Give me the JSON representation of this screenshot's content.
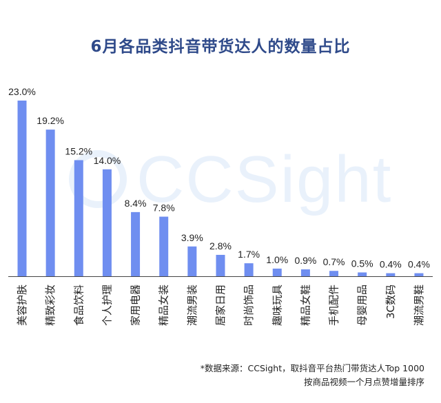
{
  "title": "6月各品类抖音带货达人的数量占比",
  "watermark": {
    "text": "CCSight",
    "icon": "ccsight-logo-icon"
  },
  "colors": {
    "bar": "#6f8ef0",
    "title": "#2f4a8a",
    "axis": "#444444"
  },
  "source": {
    "line1": "*数据来源：CCSight，取抖音平台热门带货达人Top 1000",
    "line2": "按商品视频一个月点赞增量排序"
  },
  "chart_data": {
    "type": "bar",
    "title": "6月各品类抖音带货达人的数量占比",
    "unit": "%",
    "ylim": [
      0,
      25
    ],
    "grid": false,
    "legend": "none",
    "categories": [
      "美容护肤",
      "精致彩妆",
      "食品饮料",
      "个人护理",
      "家用电器",
      "精品女装",
      "潮流男装",
      "居家日用",
      "时尚饰品",
      "趣味玩具",
      "精品女鞋",
      "手机配件",
      "母婴用品",
      "3C数码",
      "潮流男鞋"
    ],
    "values": [
      23.0,
      19.2,
      15.2,
      14.0,
      8.4,
      7.8,
      3.9,
      2.8,
      1.7,
      1.0,
      0.9,
      0.7,
      0.5,
      0.4,
      0.4
    ],
    "labels": [
      "23.0%",
      "19.2%",
      "15.2%",
      "14.0%",
      "8.4%",
      "7.8%",
      "3.9%",
      "2.8%",
      "1.7%",
      "1.0%",
      "0.9%",
      "0.7%",
      "0.5%",
      "0.4%",
      "0.4%"
    ]
  }
}
